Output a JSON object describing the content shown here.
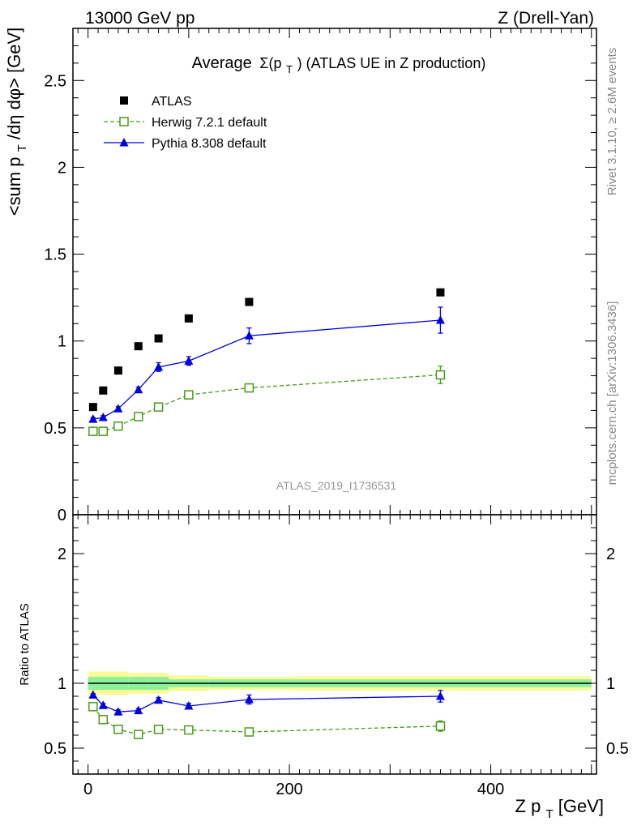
{
  "header": {
    "left": "13000 GeV pp",
    "right": "Z (Drell-Yan)"
  },
  "side_labels": {
    "rivet": "Rivet 3.1.10, ≥ 2.6M events",
    "mcplots": "mcplots.cern.ch [arXiv:1306.3436]"
  },
  "watermark": "ATLAS_2019_I1736531",
  "chart_data": {
    "type": "scatter",
    "title_prefix": "Average",
    "title_sigma": "Σ(p",
    "title_sub": "T",
    "title_suffix": ") (ATLAS UE in Z production)",
    "ylabel_main": "<sum p",
    "ylabel_sub": "T",
    "ylabel_rest": "/dη dφ> [GeV]",
    "ylabel_ratio": "Ratio to ATLAS",
    "xlabel_main": "Z p",
    "xlabel_sub": "T",
    "xlabel_rest": " [GeV]",
    "xlim": [
      -15,
      505
    ],
    "ylim_main": [
      0,
      2.8
    ],
    "ylim_ratio": [
      0.3,
      2.3
    ],
    "x_ticks": [
      {
        "v": 0,
        "label": "0"
      },
      {
        "v": 200,
        "label": "200"
      },
      {
        "v": 400,
        "label": "400"
      }
    ],
    "y_ticks_main": [
      {
        "v": 0,
        "label": "0"
      },
      {
        "v": 0.5,
        "label": "0.5"
      },
      {
        "v": 1,
        "label": "1"
      },
      {
        "v": 1.5,
        "label": "1.5"
      },
      {
        "v": 2,
        "label": "2"
      },
      {
        "v": 2.5,
        "label": "2.5"
      }
    ],
    "y_ticks_ratio": [
      {
        "v": 0.5,
        "label": "0.5"
      },
      {
        "v": 1,
        "label": "1"
      },
      {
        "v": 2,
        "label": "2"
      }
    ],
    "legend_position": "top-left",
    "x": [
      5,
      15,
      30,
      50,
      70,
      100,
      160,
      350
    ],
    "bins": [
      [
        0,
        10
      ],
      [
        10,
        20
      ],
      [
        20,
        40
      ],
      [
        40,
        60
      ],
      [
        60,
        80
      ],
      [
        80,
        120
      ],
      [
        120,
        200
      ],
      [
        200,
        500
      ]
    ],
    "series": [
      {
        "name": "ATLAS",
        "color": "#000000",
        "marker": "square-filled",
        "values": [
          0.62,
          0.715,
          0.83,
          0.97,
          1.015,
          1.13,
          1.225,
          1.28
        ]
      },
      {
        "name": "Herwig 7.2.1 default",
        "color": "#4a9a1a",
        "marker": "square-open",
        "line": "dashed",
        "values": [
          0.48,
          0.48,
          0.51,
          0.565,
          0.62,
          0.69,
          0.73,
          0.805
        ],
        "errors": [
          0.01,
          0.01,
          0.01,
          0.01,
          0.01,
          0.012,
          0.015,
          0.05
        ],
        "ratio": [
          0.82,
          0.72,
          0.645,
          0.605,
          0.645,
          0.64,
          0.625,
          0.67
        ],
        "ratio_errors": [
          0.01,
          0.01,
          0.01,
          0.01,
          0.01,
          0.01,
          0.015,
          0.04
        ]
      },
      {
        "name": "Pythia 8.308 default",
        "color": "#0000dd",
        "marker": "triangle-filled",
        "line": "solid",
        "values": [
          0.55,
          0.56,
          0.61,
          0.72,
          0.85,
          0.885,
          1.03,
          1.12
        ],
        "errors": [
          0.01,
          0.01,
          0.012,
          0.015,
          0.025,
          0.025,
          0.045,
          0.075
        ],
        "ratio": [
          0.91,
          0.83,
          0.78,
          0.79,
          0.87,
          0.825,
          0.875,
          0.9
        ],
        "ratio_errors": [
          0.01,
          0.015,
          0.015,
          0.015,
          0.02,
          0.02,
          0.035,
          0.045
        ]
      }
    ],
    "uncertainty_bands": {
      "inner_color": "#8ef09a",
      "outer_color": "#fafa96",
      "inner": [
        0.05,
        0.05,
        0.05,
        0.05,
        0.05,
        0.03,
        0.03,
        0.03
      ],
      "outer": [
        0.09,
        0.09,
        0.09,
        0.08,
        0.08,
        0.06,
        0.05,
        0.055
      ]
    }
  }
}
